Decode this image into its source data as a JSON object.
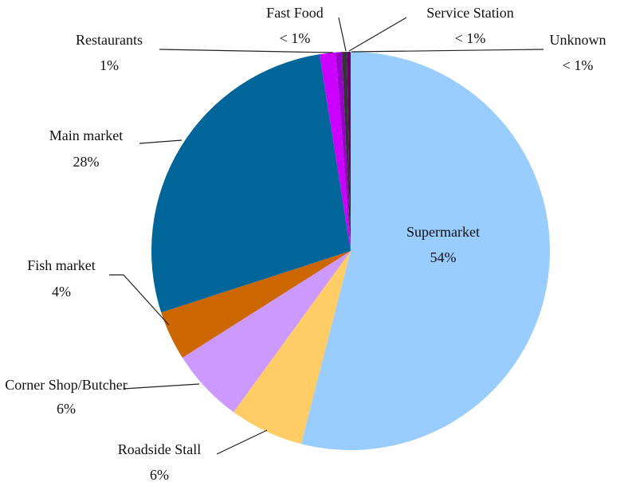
{
  "chart_data": {
    "type": "pie",
    "categories": [
      "Supermarket",
      "Roadside Stall",
      "Corner Shop/Butcher",
      "Fish market",
      "Main market",
      "Restaurants",
      "Fast Food",
      "Service Station",
      "Unknown"
    ],
    "values": [
      54,
      6,
      6,
      4,
      27.5,
      1.3,
      0.5,
      0.4,
      0.3
    ],
    "value_labels": [
      "54%",
      "6%",
      "6%",
      "4%",
      "28%",
      "1%",
      "< 1%",
      "< 1%",
      "< 1%"
    ],
    "colors": [
      "#99ccff",
      "#ffcc66",
      "#cc99ff",
      "#cc6600",
      "#006699",
      "#cc00ff",
      "#9900cc",
      "#333333",
      "#660066"
    ]
  }
}
